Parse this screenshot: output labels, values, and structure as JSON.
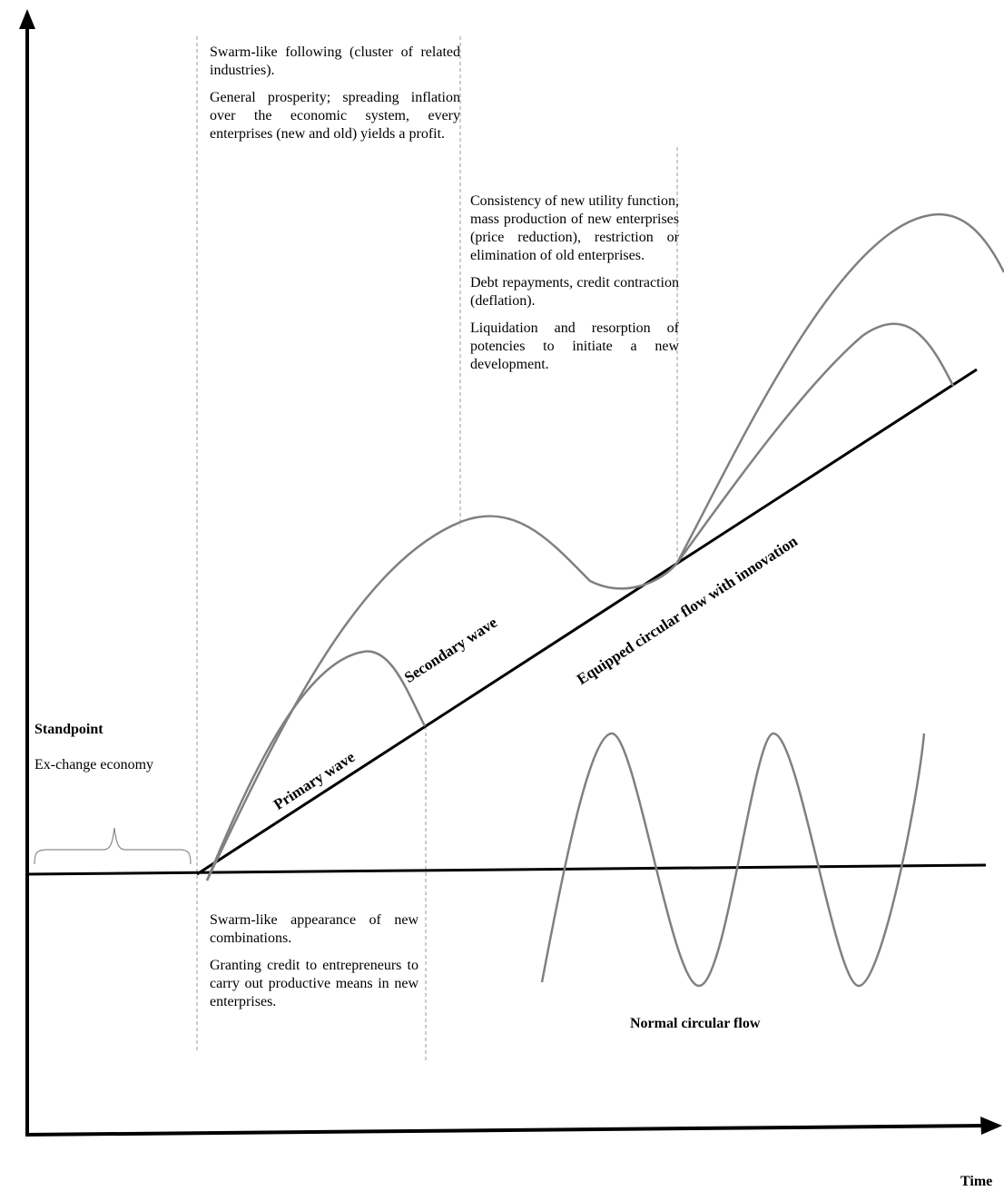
{
  "axes": {
    "x_label": "Time",
    "y_label": ""
  },
  "texts": {
    "swarm_following": "Swarm-like following (cluster of related industries).",
    "general_prosperity": "General prosperity; spreading inflation over the economic system, every enterprises (new and old) yields a profit.",
    "consistency": "Consistency of new utility function, mass production of new enterprises (price reduction), restriction or elimination of old enterprises.",
    "debt": "Debt repayments, credit contraction (deflation).",
    "liquidation": "Liquidation and resorption of potencies to initiate a new development.",
    "standpoint": "Standpoint",
    "exchange_economy": "Ex-change economy",
    "swarm_appearance": "Swarm-like appearance of new combinations.",
    "granting_credit": "Granting credit to entrepreneurs to carry out productive means in new enterprises."
  },
  "labels": {
    "primary_wave": "Primary wave",
    "secondary_wave": "Secondary wave",
    "equipped_flow": "Equipped circular flow with innovation",
    "normal_flow": "Normal circular flow"
  },
  "colors": {
    "axis": "#000000",
    "curve": "#808080",
    "dashed": "#9a9a9a"
  }
}
